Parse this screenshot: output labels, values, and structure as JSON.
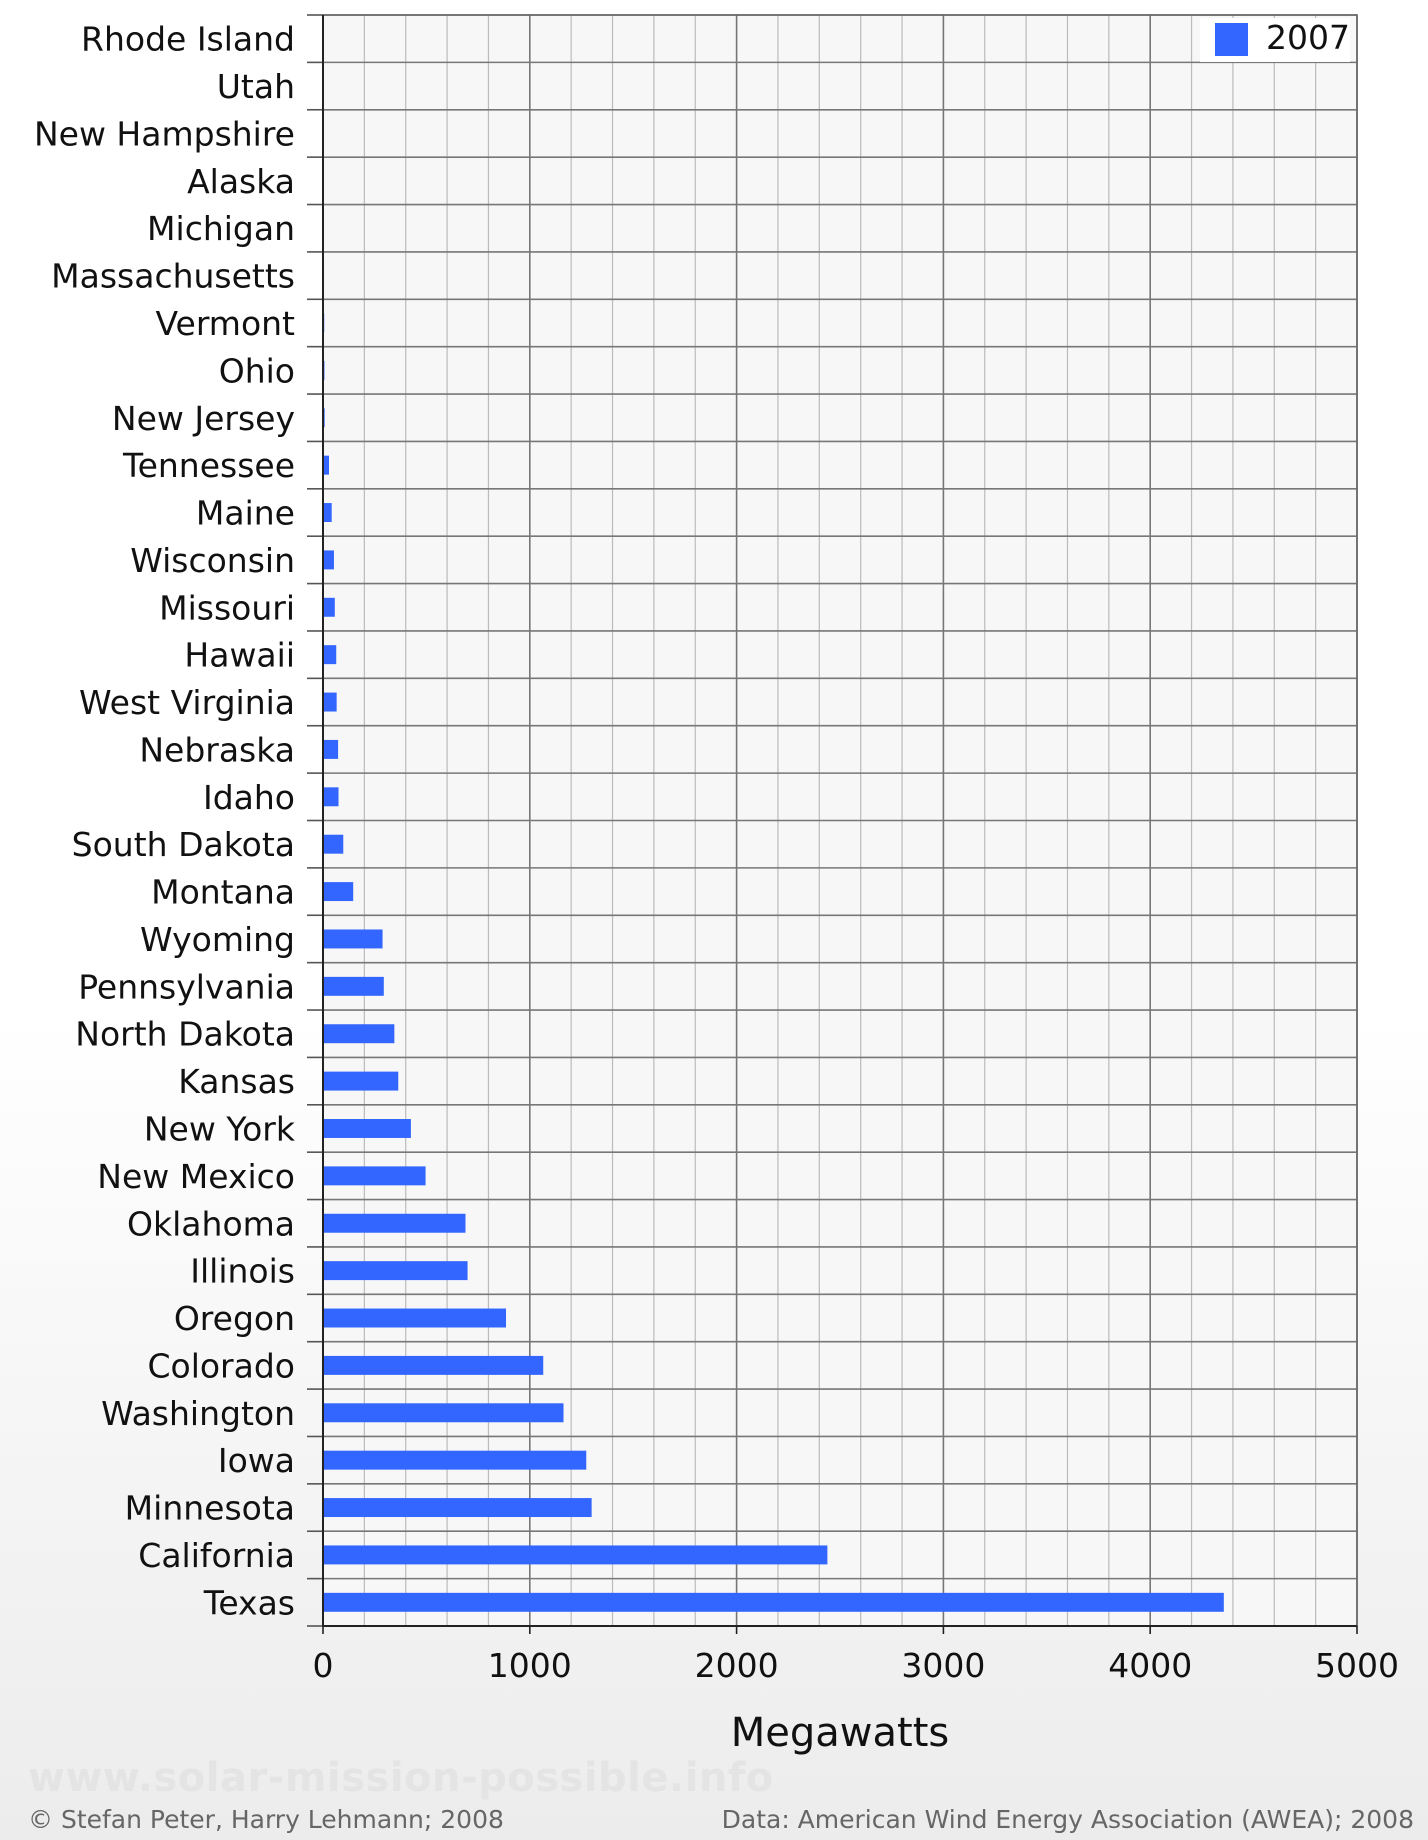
{
  "chart_data": {
    "type": "bar",
    "orientation": "horizontal",
    "categories": [
      "Rhode Island",
      "Utah",
      "New Hampshire",
      "Alaska",
      "Michigan",
      "Massachusetts",
      "Vermont",
      "Ohio",
      "New Jersey",
      "Tennessee",
      "Maine",
      "Wisconsin",
      "Missouri",
      "Hawaii",
      "West Virginia",
      "Nebraska",
      "Idaho",
      "South Dakota",
      "Montana",
      "Wyoming",
      "Pennsylvania",
      "North Dakota",
      "Kansas",
      "New York",
      "New Mexico",
      "Oklahoma",
      "Illinois",
      "Oregon",
      "Colorado",
      "Washington",
      "Iowa",
      "Minnesota",
      "California",
      "Texas"
    ],
    "series": [
      {
        "name": "2007",
        "color": "#3366ff",
        "values": [
          1,
          1,
          1,
          2,
          3,
          5,
          6,
          7,
          8,
          29,
          42,
          53,
          57,
          64,
          66,
          73,
          75,
          98,
          146,
          288,
          294,
          345,
          364,
          425,
          496,
          689,
          699,
          885,
          1065,
          1163,
          1273,
          1299,
          2439,
          4356
        ]
      }
    ],
    "xlabel": "Megawatts",
    "xlim": [
      0,
      5000
    ],
    "xticks": [
      0,
      1000,
      2000,
      3000,
      4000,
      5000
    ],
    "grid": true,
    "legend_position": "top-right"
  },
  "footer": {
    "watermark": "www.solar-mission-possible.info",
    "credit_left": "© Stefan Peter, Harry Lehmann; 2008",
    "credit_right": "Data: American Wind Energy Association (AWEA); 2008"
  }
}
